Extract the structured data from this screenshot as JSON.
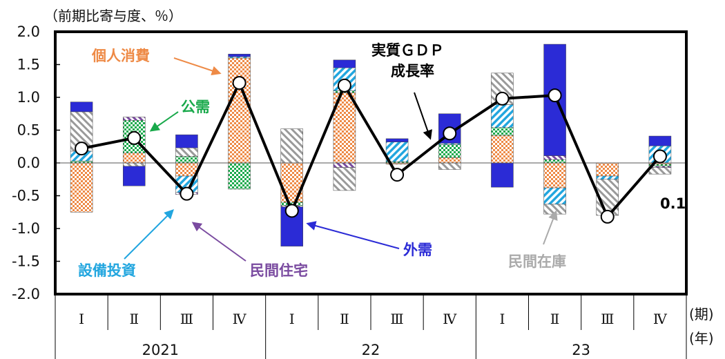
{
  "unit_label": "（前期比寄与度、％）",
  "period_label": "(期)",
  "year_label": "(年)",
  "last_value_label": "0.1",
  "colors": {
    "consumption": "#ee8a46",
    "public_demand": "#19a94b",
    "capex": "#22a6df",
    "housing": "#7a4ba0",
    "external": "#2b2bd6",
    "inventory": "#9a9a9a",
    "gdp_line": "#000000"
  },
  "annotations": {
    "consumption": "個人消費",
    "public_demand": "公需",
    "gdp_line_1": "実質ＧＤＰ",
    "gdp_line_2": "成長率",
    "capex": "設備投資",
    "housing": "民間住宅",
    "external": "外需",
    "inventory": "民間在庫"
  },
  "chart_data": {
    "type": "bar",
    "stacked": true,
    "ylim": [
      -2.0,
      2.0
    ],
    "yticks": [
      "2.0",
      "1.5",
      "1.0",
      "0.5",
      "0.0",
      "-0.5",
      "-1.0",
      "-1.5",
      "-2.0"
    ],
    "ytick_values": [
      2.0,
      1.5,
      1.0,
      0.5,
      0.0,
      -0.5,
      -1.0,
      -1.5,
      -2.0
    ],
    "categories": [
      "Ⅰ",
      "Ⅱ",
      "Ⅲ",
      "Ⅳ",
      "Ⅰ",
      "Ⅱ",
      "Ⅲ",
      "Ⅳ",
      "Ⅰ",
      "Ⅱ",
      "Ⅲ",
      "Ⅳ"
    ],
    "years": [
      {
        "label": "2021",
        "span": 4
      },
      {
        "label": "22",
        "span": 4
      },
      {
        "label": "23",
        "span": 4
      }
    ],
    "series": [
      {
        "name": "個人消費",
        "key": "consumption",
        "values": [
          -0.75,
          0.15,
          -0.2,
          1.6,
          -0.6,
          1.07,
          -0.02,
          0.08,
          0.42,
          -0.38,
          -0.2,
          -0.02
        ]
      },
      {
        "name": "公需",
        "key": "public_demand",
        "values": [
          0.03,
          0.5,
          0.1,
          -0.4,
          -0.05,
          0.03,
          0.02,
          0.2,
          0.12,
          0.05,
          0.0,
          -0.03
        ]
      },
      {
        "name": "設備投資",
        "key": "capex",
        "values": [
          0.15,
          0.0,
          -0.25,
          0.02,
          0.0,
          0.35,
          0.3,
          0.02,
          0.35,
          -0.25,
          -0.05,
          0.26
        ]
      },
      {
        "name": "民間住宅",
        "key": "housing",
        "values": [
          0.0,
          0.05,
          -0.03,
          0.0,
          -0.02,
          -0.07,
          0.0,
          0.0,
          0.0,
          0.06,
          0.0,
          -0.02
        ]
      },
      {
        "name": "民間在庫",
        "key": "inventory",
        "values": [
          0.6,
          -0.05,
          0.13,
          0.0,
          0.52,
          -0.35,
          0.0,
          -0.1,
          0.48,
          -0.15,
          -0.55,
          -0.1
        ]
      },
      {
        "name": "外需",
        "key": "external",
        "values": [
          0.15,
          -0.3,
          0.2,
          0.04,
          -0.6,
          0.12,
          0.05,
          0.45,
          -0.37,
          1.7,
          0.0,
          0.15
        ]
      }
    ],
    "gdp_growth": {
      "name": "実質ＧＤＰ成長率",
      "values": [
        0.22,
        0.38,
        -0.47,
        1.22,
        -0.73,
        1.18,
        -0.18,
        0.45,
        0.98,
        1.03,
        -0.82,
        0.1
      ]
    },
    "grid": false,
    "legend": "none"
  }
}
